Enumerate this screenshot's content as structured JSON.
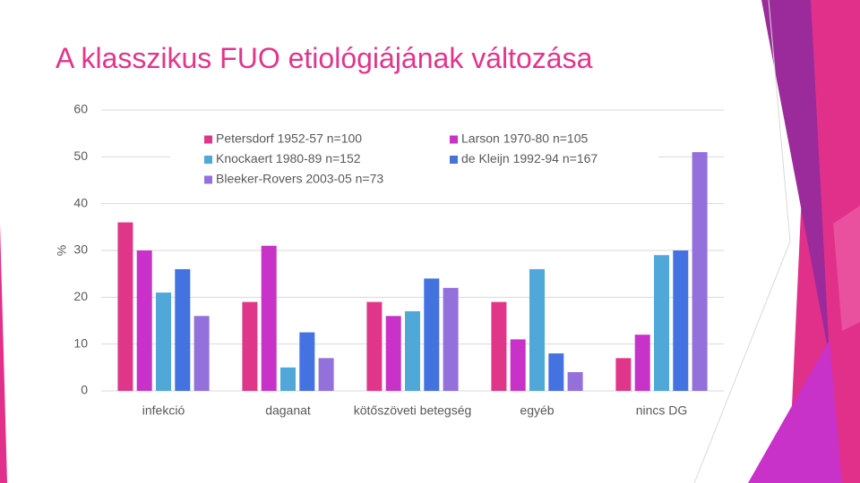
{
  "chart_data": {
    "type": "bar",
    "title": "A klasszikus FUO etiológiájának változása",
    "y_label": "%",
    "categories": [
      "infekció",
      "daganat",
      "kötőszöveti betegség",
      "egyéb",
      "nincs DG"
    ],
    "series": [
      {
        "name": "Petersdorf 1952-57 n=100",
        "color": "#e0368a",
        "values": [
          36,
          19,
          19,
          19,
          7
        ]
      },
      {
        "name": "Larson 1970-80 n=105",
        "color": "#c832c8",
        "values": [
          30,
          31,
          16,
          11,
          12
        ]
      },
      {
        "name": "Knockaert 1980-89 n=152",
        "color": "#4fa8d8",
        "values": [
          21,
          5,
          17,
          26,
          29
        ]
      },
      {
        "name": "de Kleijn 1992-94 n=167",
        "color": "#4472e0",
        "values": [
          26,
          12.5,
          24,
          8,
          30
        ]
      },
      {
        "name": "Bleeker-Rovers 2003-05 n=73",
        "color": "#9370db",
        "values": [
          16,
          7,
          22,
          4,
          51
        ]
      }
    ],
    "ylim": [
      0,
      60
    ],
    "yticks": [
      0,
      10,
      20,
      30,
      40,
      50,
      60
    ],
    "grid": true,
    "legend": "top"
  }
}
